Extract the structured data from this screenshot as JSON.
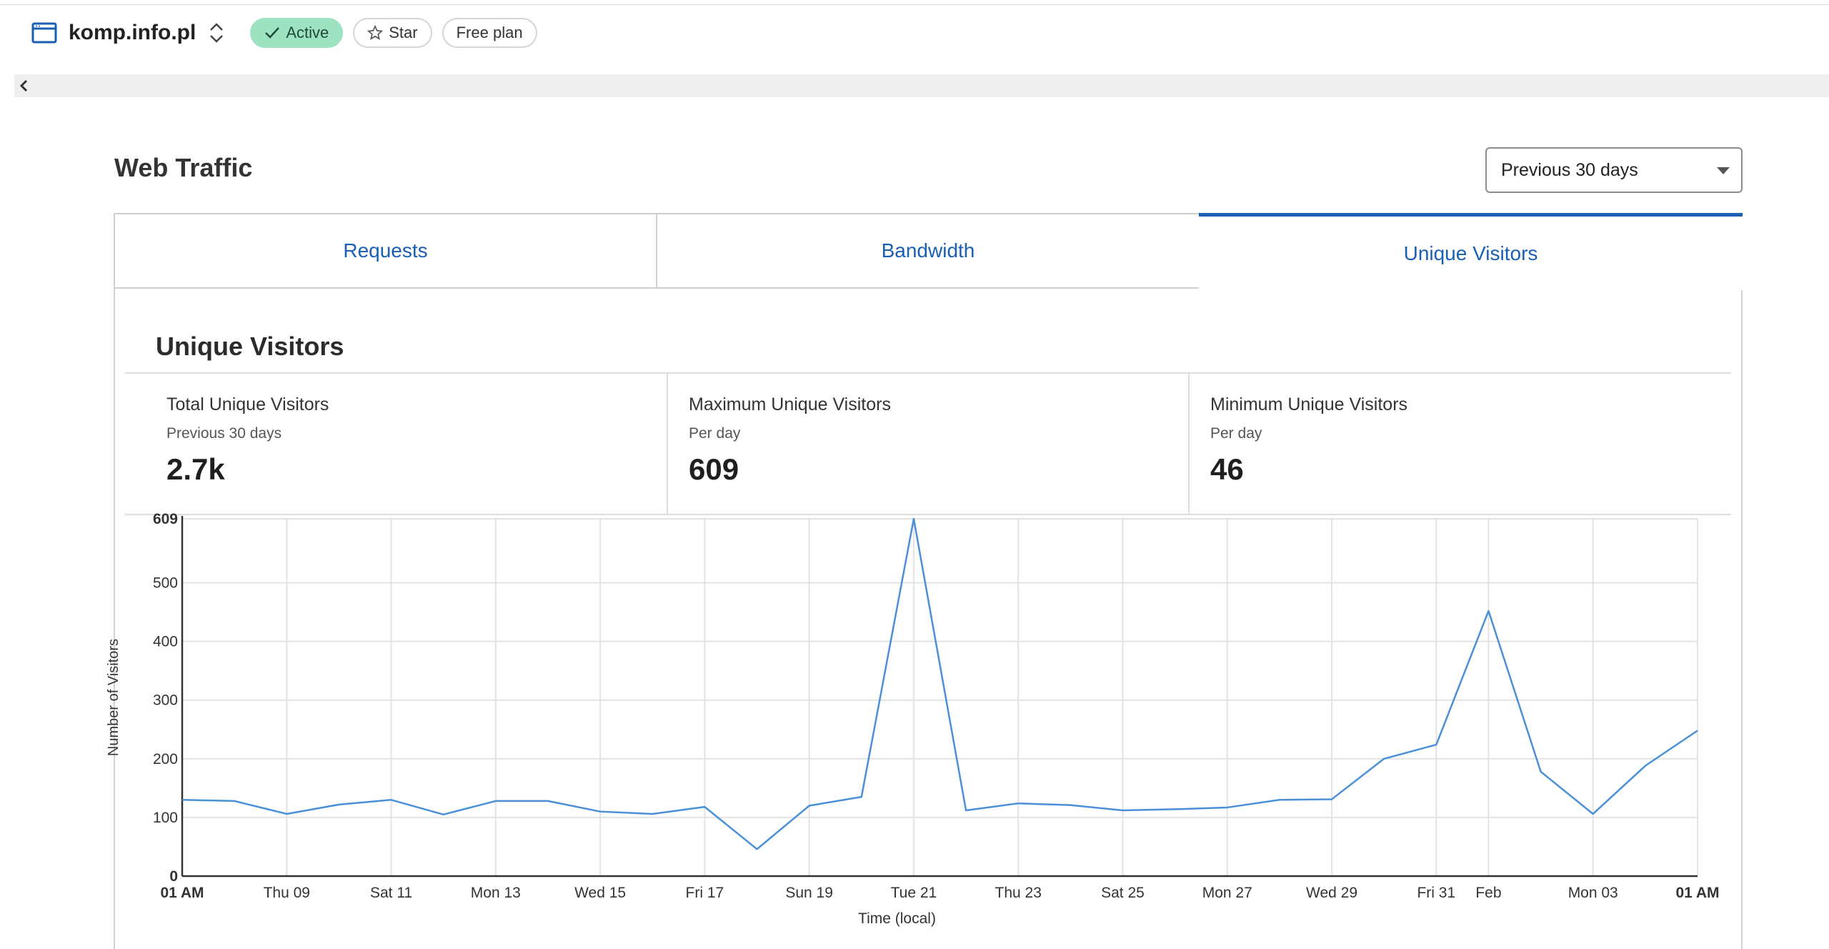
{
  "header": {
    "site_name": "komp.info.pl",
    "status_label": "Active",
    "star_label": "Star",
    "plan_label": "Free plan",
    "icons": [
      "browser-window-icon",
      "chevron-up-down-icon",
      "checkmark-icon",
      "star-icon",
      "chevron-left-icon"
    ]
  },
  "section": {
    "title": "Web Traffic",
    "range_value": "Previous 30 days"
  },
  "tabs": [
    {
      "label": "Requests",
      "active": false
    },
    {
      "label": "Bandwidth",
      "active": false
    },
    {
      "label": "Unique Visitors",
      "active": true
    }
  ],
  "card": {
    "title": "Unique Visitors",
    "stats": [
      {
        "label": "Total Unique Visitors",
        "sub": "Previous 30 days",
        "value": "2.7k"
      },
      {
        "label": "Maximum Unique Visitors",
        "sub": "Per day",
        "value": "609"
      },
      {
        "label": "Minimum Unique Visitors",
        "sub": "Per day",
        "value": "46"
      }
    ]
  },
  "colors": {
    "accent": "#1a5fb4",
    "line": "#4a90d9",
    "active_badge": "#9ee3c1"
  },
  "chart_data": {
    "type": "line",
    "xlabel": "Time (local)",
    "ylabel": "Number of Visitors",
    "ylim": [
      0,
      609
    ],
    "yticks": [
      0,
      100,
      200,
      300,
      400,
      500,
      609
    ],
    "grid": true,
    "xtick_labels": [
      "01 AM",
      "Thu 09",
      "Sat 11",
      "Mon 13",
      "Wed 15",
      "Fri 17",
      "Sun 19",
      "Tue 21",
      "Thu 23",
      "Sat 25",
      "Mon 27",
      "Wed 29",
      "Fri 31",
      "Feb",
      "Mon 03",
      "01 AM"
    ],
    "xtick_index": [
      0,
      2,
      4,
      6,
      8,
      10,
      12,
      14,
      16,
      18,
      20,
      22,
      24,
      25,
      27,
      29
    ],
    "series": [
      {
        "values": [
          130,
          128,
          106,
          122,
          130,
          105,
          128,
          128,
          110,
          106,
          118,
          46,
          120,
          135,
          609,
          112,
          124,
          121,
          112,
          114,
          117,
          130,
          131,
          200,
          224,
          452,
          178,
          106,
          188,
          248
        ]
      }
    ]
  }
}
